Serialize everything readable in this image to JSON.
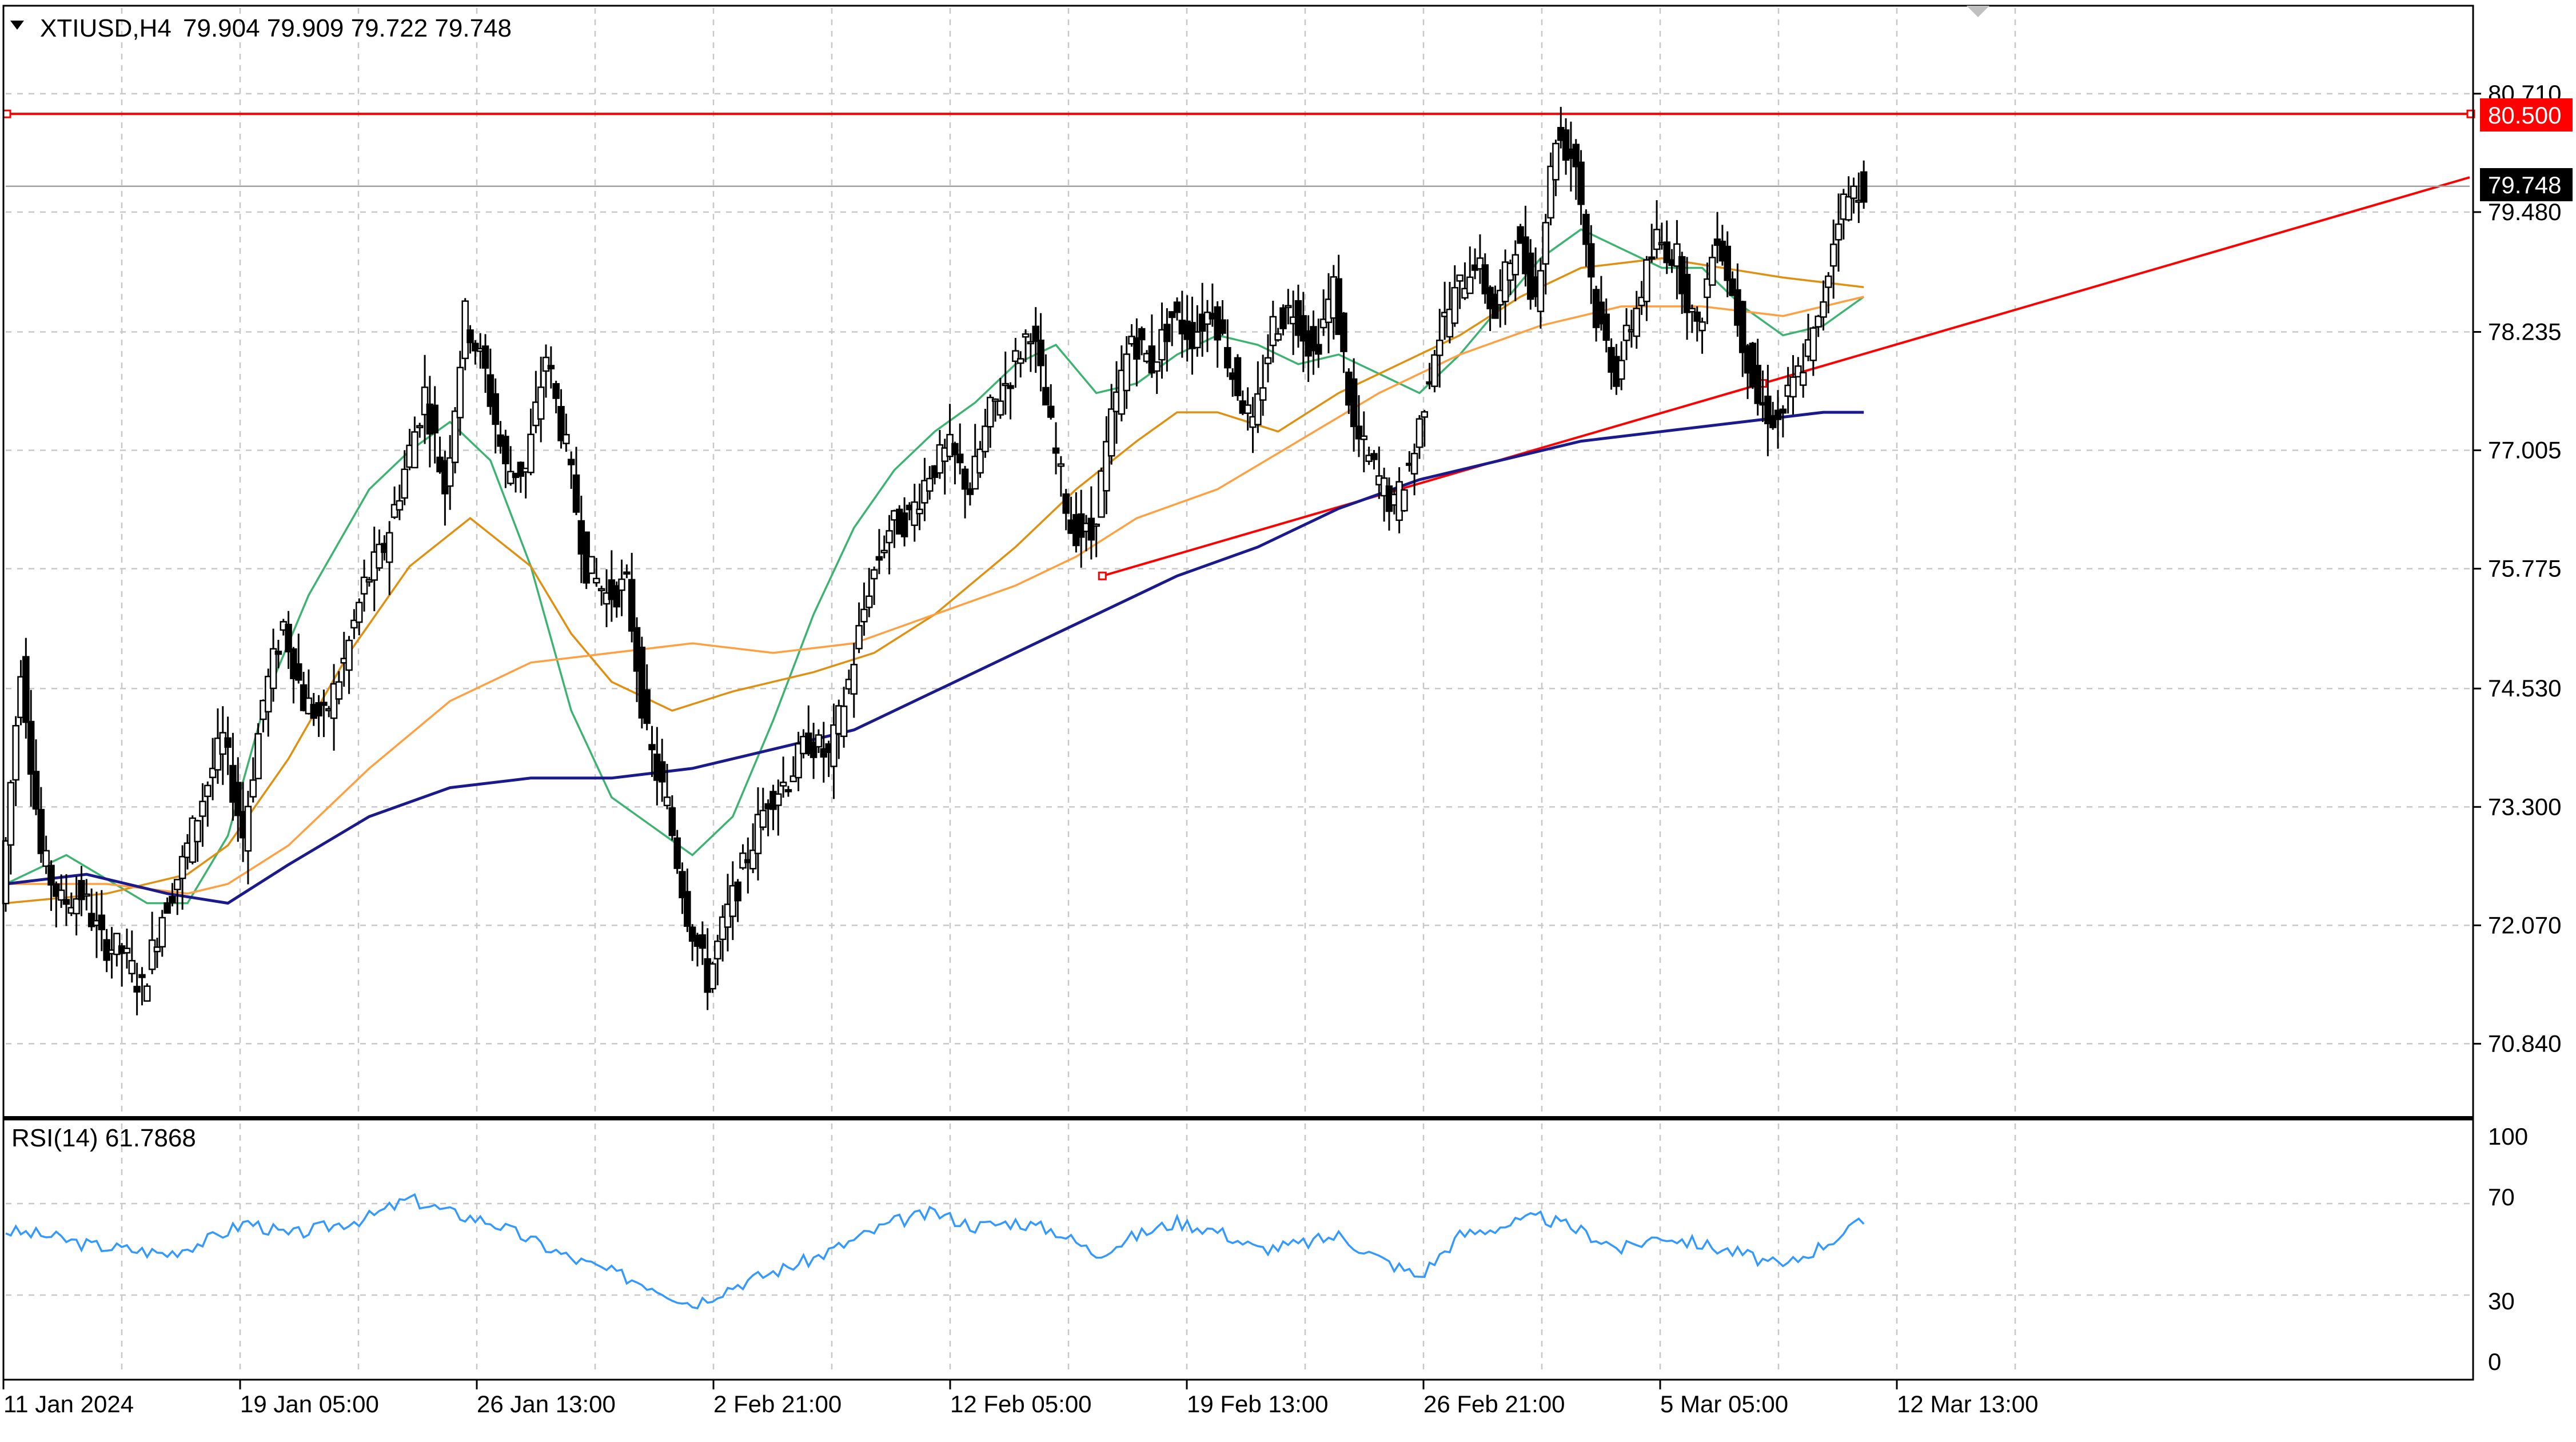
{
  "header": {
    "symbol": "XTIUSD,H4",
    "ohlc": "79.904 79.909 79.722 79.748"
  },
  "rsi_panel": {
    "label": "RSI(14) 61.7868",
    "levels": [
      "100",
      "70",
      "30",
      "0"
    ]
  },
  "price_labels": {
    "resistance": "80.500",
    "current": "79.748"
  },
  "colors": {
    "candle": "#000000",
    "resistance_line": "#ff0000",
    "trend_line": "#ff0000",
    "ma_fast": "#3cb371",
    "ma_mid": "#e09010",
    "ma_slow": "#ff9f40",
    "ma_200": "#1a1a8c",
    "rsi": "#3399ff"
  },
  "chart_data": {
    "type": "candlestick",
    "symbol": "XTIUSD",
    "timeframe": "H4",
    "y_ticks": [
      "80.710",
      "79.480",
      "78.235",
      "77.005",
      "75.775",
      "74.530",
      "73.300",
      "72.070",
      "70.840"
    ],
    "x_ticks": [
      "11 Jan 2024",
      "19 Jan 05:00",
      "26 Jan 13:00",
      "2 Feb 21:00",
      "12 Feb 05:00",
      "19 Feb 13:00",
      "26 Feb 21:00",
      "5 Mar 05:00",
      "12 Mar 13:00"
    ],
    "ylim": [
      70.1,
      81.6
    ],
    "resistance_level": 80.5,
    "last_price": 79.748,
    "trend_line": {
      "start": [
        54.3,
        75.7
      ],
      "end": [
        87.0,
        77.7
      ]
    },
    "close_path": [
      [
        0,
        72.3
      ],
      [
        1,
        74.8
      ],
      [
        2,
        72.8
      ],
      [
        3,
        72.3
      ],
      [
        4,
        72.4
      ],
      [
        5,
        71.9
      ],
      [
        6,
        71.8
      ],
      [
        7,
        71.4
      ],
      [
        8,
        72.2
      ],
      [
        9,
        72.7
      ],
      [
        10,
        73.4
      ],
      [
        11,
        74.0
      ],
      [
        12,
        73.0
      ],
      [
        13,
        74.4
      ],
      [
        14,
        75.2
      ],
      [
        15,
        74.4
      ],
      [
        16,
        74.2
      ],
      [
        17,
        74.8
      ],
      [
        18,
        75.6
      ],
      [
        19,
        76.0
      ],
      [
        20,
        76.8
      ],
      [
        21,
        77.6
      ],
      [
        22,
        76.6
      ],
      [
        23,
        78.4
      ],
      [
        24,
        77.8
      ],
      [
        25,
        76.8
      ],
      [
        26,
        76.8
      ],
      [
        27,
        78.0
      ],
      [
        28,
        77.0
      ],
      [
        29,
        75.8
      ],
      [
        30,
        75.5
      ],
      [
        31,
        75.6
      ],
      [
        32,
        74.0
      ],
      [
        33,
        73.3
      ],
      [
        34,
        72.2
      ],
      [
        35,
        71.5
      ],
      [
        36,
        72.2
      ],
      [
        37,
        72.8
      ],
      [
        38,
        73.4
      ],
      [
        39,
        73.6
      ],
      [
        40,
        74.0
      ],
      [
        41,
        73.8
      ],
      [
        42,
        74.6
      ],
      [
        43,
        75.6
      ],
      [
        44,
        76.2
      ],
      [
        45,
        76.3
      ],
      [
        46,
        76.8
      ],
      [
        47,
        77.0
      ],
      [
        48,
        76.6
      ],
      [
        49,
        77.4
      ],
      [
        50,
        77.8
      ],
      [
        51,
        78.3
      ],
      [
        52,
        77.2
      ],
      [
        53,
        76.2
      ],
      [
        54,
        76.1
      ],
      [
        55,
        77.3
      ],
      [
        56,
        78.2
      ],
      [
        57,
        77.9
      ],
      [
        58,
        78.4
      ],
      [
        59,
        78.2
      ],
      [
        60,
        78.5
      ],
      [
        61,
        77.8
      ],
      [
        62,
        77.2
      ],
      [
        63,
        78.3
      ],
      [
        64,
        78.5
      ],
      [
        65,
        78.0
      ],
      [
        66,
        78.7
      ],
      [
        67,
        77.2
      ],
      [
        68,
        76.8
      ],
      [
        69,
        76.4
      ],
      [
        70,
        77.0
      ],
      [
        71,
        78.1
      ],
      [
        72,
        78.6
      ],
      [
        73,
        79.0
      ],
      [
        74,
        78.4
      ],
      [
        75,
        79.2
      ],
      [
        76,
        78.6
      ],
      [
        77,
        80.3
      ],
      [
        78,
        80.0
      ],
      [
        79,
        78.4
      ],
      [
        80,
        77.8
      ],
      [
        81,
        78.5
      ],
      [
        82,
        79.2
      ],
      [
        83,
        79.0
      ],
      [
        84,
        78.2
      ],
      [
        85,
        79.3
      ],
      [
        86,
        78.4
      ],
      [
        87,
        77.5
      ],
      [
        88,
        77.3
      ],
      [
        89,
        77.8
      ],
      [
        90,
        78.3
      ],
      [
        91,
        79.5
      ],
      [
        92,
        79.75
      ]
    ],
    "moving_averages": [
      {
        "name": "",
        "color": "#3cb371",
        "values": [
          [
            0,
            72.5
          ],
          [
            3,
            72.8
          ],
          [
            7,
            72.3
          ],
          [
            9,
            72.3
          ],
          [
            11,
            73.0
          ],
          [
            13,
            74.5
          ],
          [
            15,
            75.5
          ],
          [
            18,
            76.6
          ],
          [
            20,
            77.0
          ],
          [
            22,
            77.3
          ],
          [
            24,
            76.9
          ],
          [
            26,
            75.8
          ],
          [
            28,
            74.3
          ],
          [
            30,
            73.4
          ],
          [
            32,
            73.1
          ],
          [
            34,
            72.8
          ],
          [
            36,
            73.2
          ],
          [
            38,
            74.2
          ],
          [
            40,
            75.3
          ],
          [
            42,
            76.2
          ],
          [
            44,
            76.8
          ],
          [
            46,
            77.2
          ],
          [
            48,
            77.5
          ],
          [
            50,
            77.9
          ],
          [
            52,
            78.1
          ],
          [
            54,
            77.6
          ],
          [
            56,
            77.7
          ],
          [
            58,
            78.0
          ],
          [
            60,
            78.2
          ],
          [
            62,
            78.1
          ],
          [
            64,
            77.9
          ],
          [
            66,
            78.0
          ],
          [
            68,
            77.8
          ],
          [
            70,
            77.6
          ],
          [
            72,
            78.0
          ],
          [
            74,
            78.5
          ],
          [
            76,
            79.0
          ],
          [
            78,
            79.3
          ],
          [
            80,
            79.1
          ],
          [
            82,
            78.9
          ],
          [
            84,
            78.9
          ],
          [
            86,
            78.5
          ],
          [
            88,
            78.2
          ],
          [
            90,
            78.3
          ],
          [
            92,
            78.6
          ]
        ]
      },
      {
        "name": "",
        "color": "#e09010",
        "values": [
          [
            0,
            72.3
          ],
          [
            5,
            72.4
          ],
          [
            9,
            72.6
          ],
          [
            11,
            72.9
          ],
          [
            14,
            73.8
          ],
          [
            17,
            74.9
          ],
          [
            20,
            75.8
          ],
          [
            23,
            76.3
          ],
          [
            26,
            75.8
          ],
          [
            28,
            75.1
          ],
          [
            30,
            74.6
          ],
          [
            33,
            74.3
          ],
          [
            36,
            74.5
          ],
          [
            40,
            74.7
          ],
          [
            43,
            74.9
          ],
          [
            46,
            75.3
          ],
          [
            50,
            76.0
          ],
          [
            53,
            76.6
          ],
          [
            56,
            77.1
          ],
          [
            58,
            77.4
          ],
          [
            60,
            77.4
          ],
          [
            63,
            77.2
          ],
          [
            66,
            77.6
          ],
          [
            69,
            77.9
          ],
          [
            72,
            78.2
          ],
          [
            75,
            78.6
          ],
          [
            78,
            78.9
          ],
          [
            82,
            79.0
          ],
          [
            85,
            78.9
          ],
          [
            88,
            78.8
          ],
          [
            92,
            78.7
          ]
        ]
      },
      {
        "name": "",
        "color": "#ff9f40",
        "values": [
          [
            0,
            72.5
          ],
          [
            5,
            72.5
          ],
          [
            9,
            72.4
          ],
          [
            11,
            72.5
          ],
          [
            14,
            72.9
          ],
          [
            18,
            73.7
          ],
          [
            22,
            74.4
          ],
          [
            26,
            74.8
          ],
          [
            30,
            74.9
          ],
          [
            34,
            75.0
          ],
          [
            38,
            74.9
          ],
          [
            42,
            75.0
          ],
          [
            46,
            75.3
          ],
          [
            50,
            75.6
          ],
          [
            53,
            75.9
          ],
          [
            56,
            76.3
          ],
          [
            60,
            76.6
          ],
          [
            64,
            77.1
          ],
          [
            68,
            77.6
          ],
          [
            72,
            78.0
          ],
          [
            76,
            78.3
          ],
          [
            80,
            78.5
          ],
          [
            84,
            78.5
          ],
          [
            88,
            78.4
          ],
          [
            92,
            78.6
          ]
        ]
      },
      {
        "name": "",
        "color": "#1a1a8c",
        "values": [
          [
            0,
            72.5
          ],
          [
            4,
            72.6
          ],
          [
            8,
            72.4
          ],
          [
            11,
            72.3
          ],
          [
            14,
            72.7
          ],
          [
            18,
            73.2
          ],
          [
            22,
            73.5
          ],
          [
            26,
            73.6
          ],
          [
            30,
            73.6
          ],
          [
            34,
            73.7
          ],
          [
            38,
            73.9
          ],
          [
            42,
            74.1
          ],
          [
            46,
            74.5
          ],
          [
            50,
            74.9
          ],
          [
            54,
            75.3
          ],
          [
            58,
            75.7
          ],
          [
            62,
            76.0
          ],
          [
            66,
            76.4
          ],
          [
            70,
            76.7
          ],
          [
            74,
            76.9
          ],
          [
            78,
            77.1
          ],
          [
            82,
            77.2
          ],
          [
            86,
            77.3
          ],
          [
            90,
            77.4
          ],
          [
            92,
            77.4
          ]
        ]
      }
    ],
    "rsi": {
      "name": "RSI(14)",
      "ylim": [
        0,
        100
      ],
      "levels": [
        30,
        70
      ],
      "values": [
        [
          0,
          58
        ],
        [
          2,
          56
        ],
        [
          4,
          52
        ],
        [
          6,
          50
        ],
        [
          8,
          48
        ],
        [
          10,
          54
        ],
        [
          12,
          62
        ],
        [
          14,
          56
        ],
        [
          16,
          60
        ],
        [
          18,
          64
        ],
        [
          20,
          72
        ],
        [
          22,
          66
        ],
        [
          24,
          62
        ],
        [
          26,
          54
        ],
        [
          28,
          46
        ],
        [
          30,
          40
        ],
        [
          32,
          34
        ],
        [
          34,
          26
        ],
        [
          36,
          34
        ],
        [
          38,
          40
        ],
        [
          40,
          46
        ],
        [
          42,
          54
        ],
        [
          44,
          62
        ],
        [
          46,
          66
        ],
        [
          48,
          60
        ],
        [
          50,
          62
        ],
        [
          52,
          58
        ],
        [
          54,
          48
        ],
        [
          56,
          56
        ],
        [
          58,
          62
        ],
        [
          60,
          58
        ],
        [
          62,
          50
        ],
        [
          64,
          52
        ],
        [
          66,
          56
        ],
        [
          68,
          46
        ],
        [
          70,
          38
        ],
        [
          72,
          56
        ],
        [
          74,
          60
        ],
        [
          76,
          64
        ],
        [
          78,
          58
        ],
        [
          80,
          50
        ],
        [
          82,
          56
        ],
        [
          84,
          52
        ],
        [
          86,
          48
        ],
        [
          88,
          42
        ],
        [
          90,
          52
        ],
        [
          92,
          62
        ]
      ]
    }
  }
}
